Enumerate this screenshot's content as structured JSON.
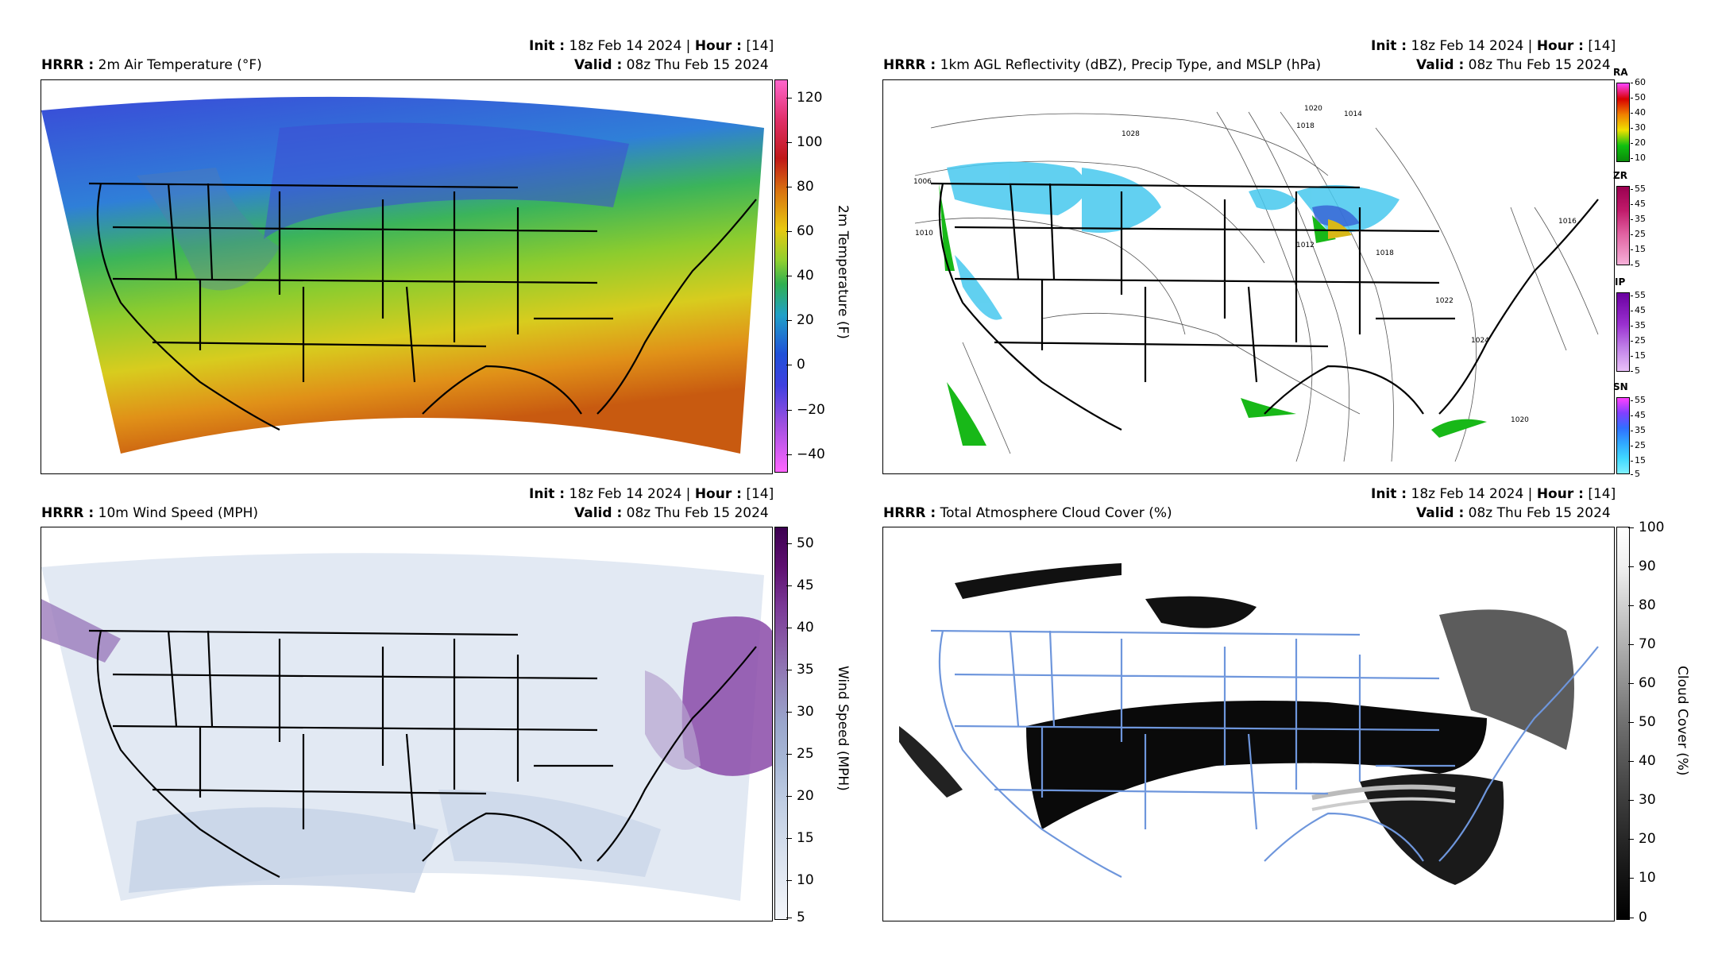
{
  "header_common": {
    "init_label": "Init :",
    "init_value": " 18z Feb 14 2024 | ",
    "hour_label": "Hour :",
    "hour_value": " [14]",
    "valid_label": "Valid :",
    "valid_value": " 08z Thu Feb 15 2024"
  },
  "panels": {
    "temp": {
      "model": "HRRR :",
      "title": " 2m Air Temperature (°F)",
      "cbar_label": "2m Temperature (F)",
      "ticks": [
        "120",
        "100",
        "80",
        "60",
        "40",
        "20",
        "0",
        "−20",
        "−40"
      ]
    },
    "refl": {
      "model": "HRRR :",
      "title": " 1km AGL Reflectivity (dBZ), Precip Type, and MSLP (hPa)",
      "ptypes": [
        {
          "name": "RA",
          "ticks": [
            "60",
            "50",
            "40",
            "30",
            "20",
            "10"
          ]
        },
        {
          "name": "ZR",
          "ticks": [
            "55",
            "45",
            "35",
            "25",
            "15",
            "5"
          ]
        },
        {
          "name": "IP",
          "ticks": [
            "55",
            "45",
            "35",
            "25",
            "15",
            "5"
          ]
        },
        {
          "name": "SN",
          "ticks": [
            "55",
            "45",
            "35",
            "25",
            "15",
            "5"
          ]
        }
      ],
      "isobar_labels": [
        "1028",
        "1020",
        "1018",
        "1014",
        "1024",
        "1006",
        "1012",
        "1016",
        "1010",
        "1022",
        "1020",
        "1018"
      ]
    },
    "wind": {
      "model": "HRRR :",
      "title": " 10m Wind Speed (MPH)",
      "cbar_label": "Wind Speed (MPH)",
      "ticks": [
        "50",
        "45",
        "40",
        "35",
        "30",
        "25",
        "20",
        "15",
        "10",
        "5"
      ]
    },
    "cloud": {
      "model": "HRRR :",
      "title": " Total Atmosphere Cloud Cover (%)",
      "cbar_label": "Cloud Cover (%)",
      "ticks": [
        "100",
        "90",
        "80",
        "70",
        "60",
        "50",
        "40",
        "30",
        "20",
        "10",
        "0"
      ]
    }
  },
  "colors": {
    "temp_gradient": [
      "#ff66cc",
      "#e0306a",
      "#c01818",
      "#d87010",
      "#e8c810",
      "#90d030",
      "#30b050",
      "#20a0c8",
      "#2050d8",
      "#4040e0",
      "#a050e0",
      "#ff66ff"
    ],
    "wind_gradient": [
      "#f4f6fa",
      "#dbe3ef",
      "#bfcde3",
      "#a8b8d6",
      "#9aa6cc",
      "#9485bb",
      "#8a5ea8",
      "#7a3896",
      "#5e1070",
      "#3c0050"
    ],
    "cloud_gradient": [
      "#000000",
      "#ffffff"
    ],
    "state_lines_cloud": "#6e96dc"
  }
}
